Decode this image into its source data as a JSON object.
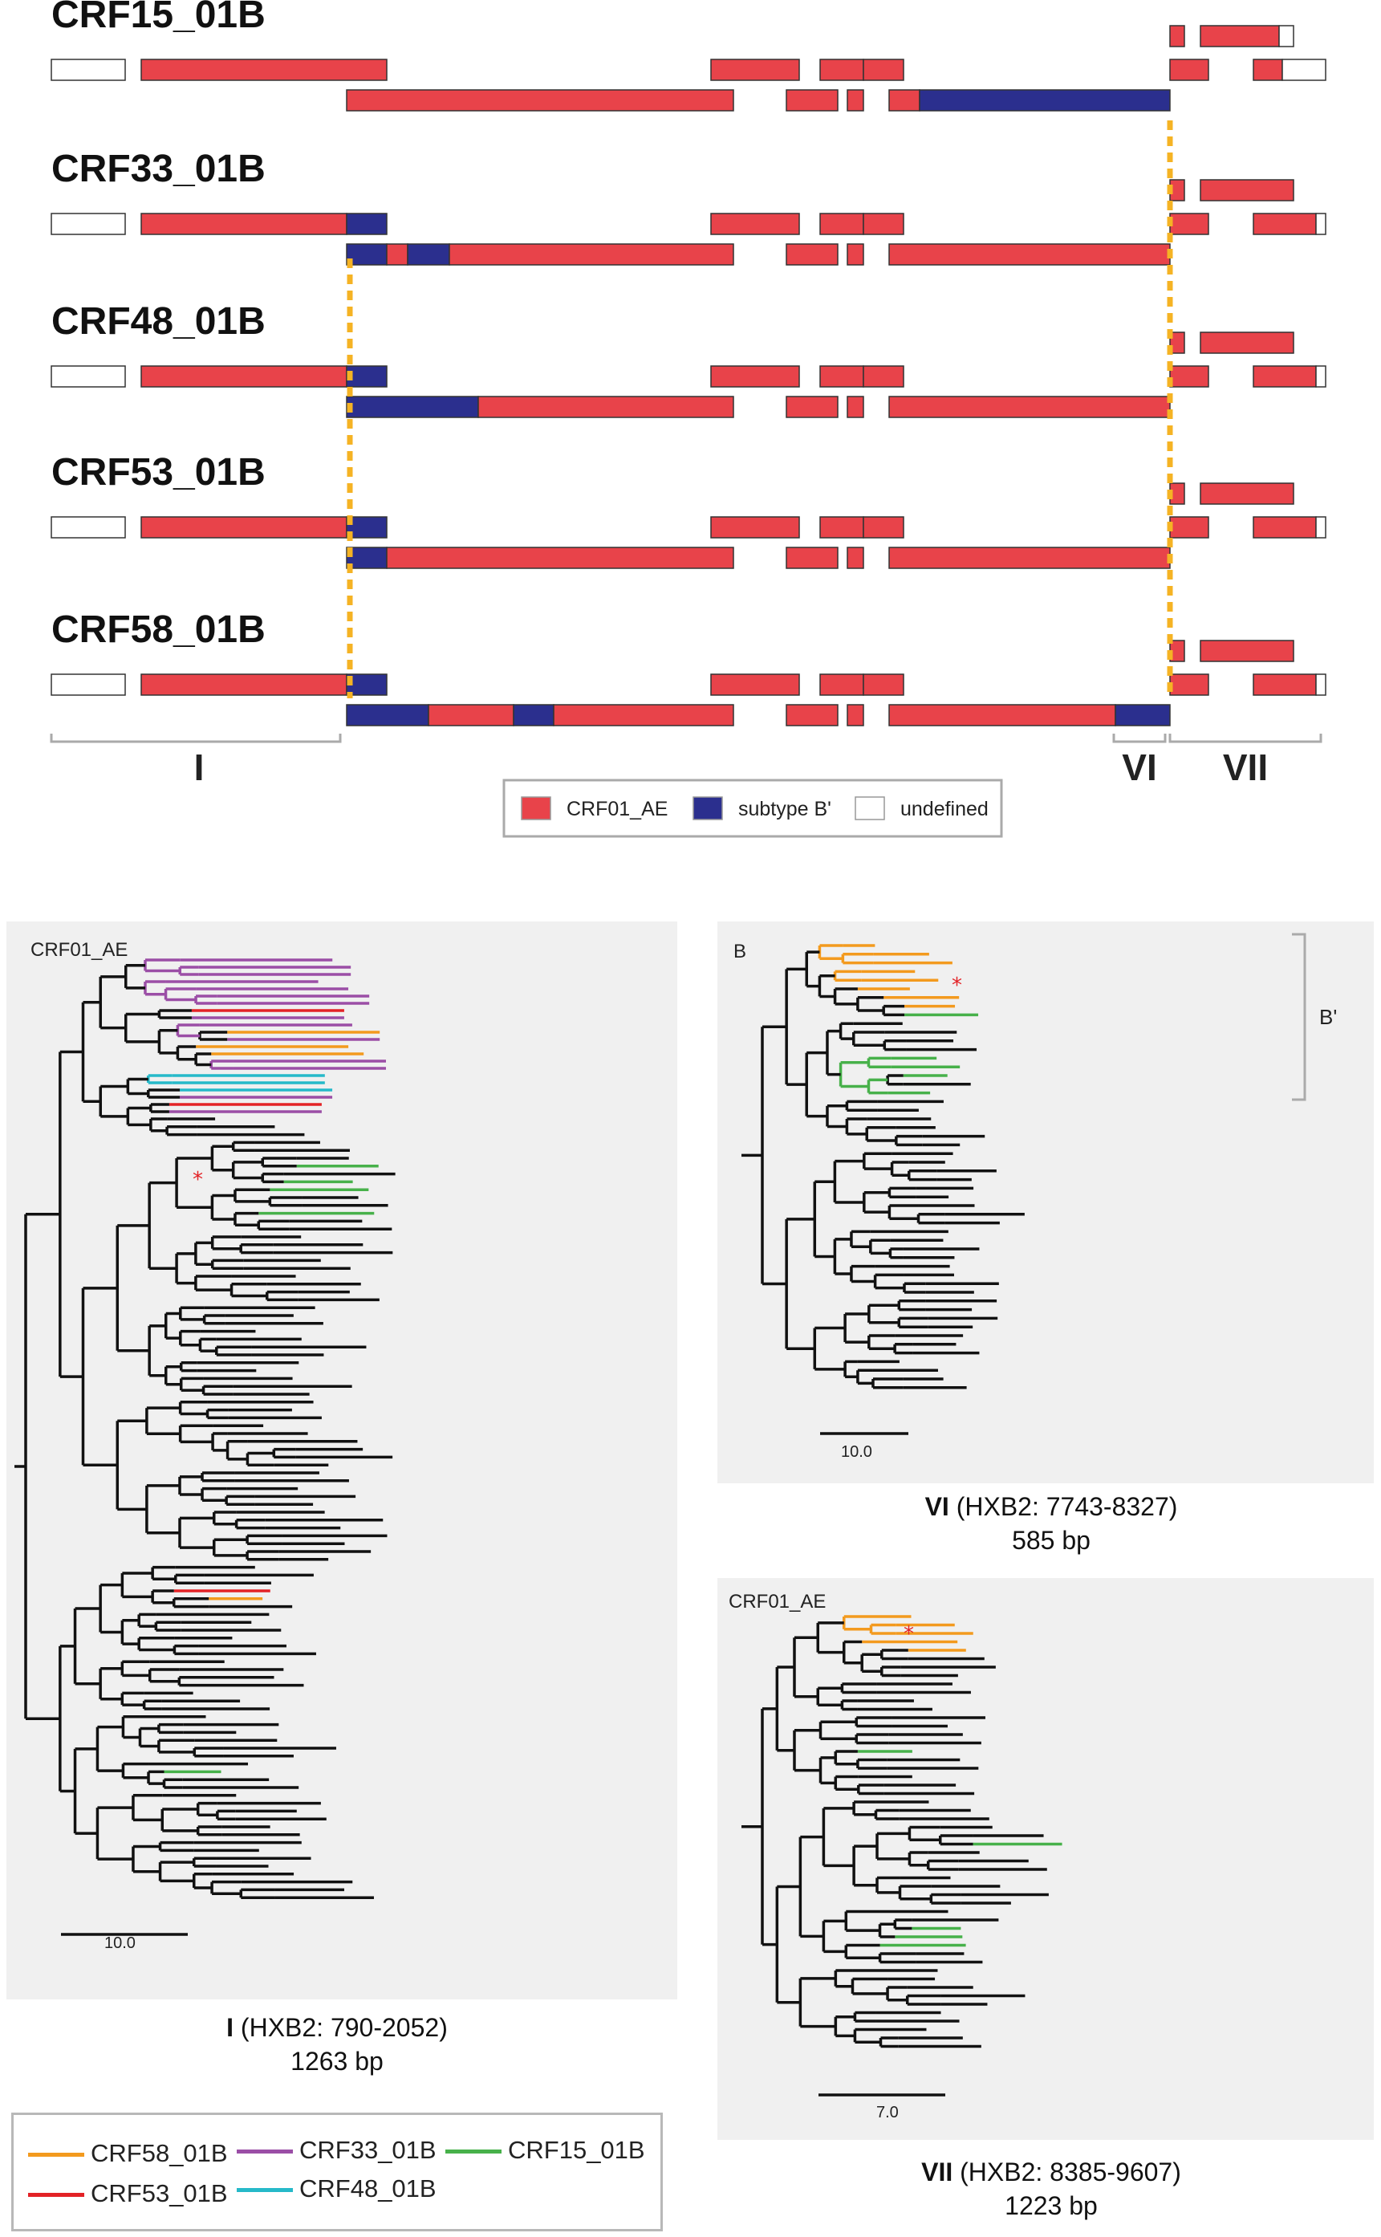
{
  "legend": {
    "items": [
      {
        "label": "CRF01_AE",
        "color": "#e8434a"
      },
      {
        "label": "subtype B'",
        "color": "#2b2f8e"
      },
      {
        "label": "undefined",
        "color": "#ffffff"
      }
    ]
  },
  "genome_maps": [
    {
      "name": "CRF15_01B"
    },
    {
      "name": "CRF33_01B"
    },
    {
      "name": "CRF48_01B"
    },
    {
      "name": "CRF53_01B"
    },
    {
      "name": "CRF58_01B"
    }
  ],
  "regions": {
    "I": "I",
    "VI": "VI",
    "VII": "VII"
  },
  "trees": {
    "I": {
      "title": "CRF01_AE",
      "scale": "10.0",
      "caption_region": "I",
      "caption_range": "(HXB2: 790-2052)",
      "caption_length": "1263 bp"
    },
    "VI": {
      "title": "B",
      "scale": "10.0",
      "clade_label": "B'",
      "caption_region": "VI",
      "caption_range": "(HXB2: 7743-8327)",
      "caption_length": "585 bp"
    },
    "VII": {
      "title": "CRF01_AE",
      "scale": "7.0",
      "caption_region": "VII",
      "caption_range": "(HXB2: 8385-9607)",
      "caption_length": "1223 bp"
    }
  },
  "tree_legend": [
    {
      "label": "CRF58_01B",
      "color": "#f39a1e"
    },
    {
      "label": "CRF53_01B",
      "color": "#e32226"
    },
    {
      "label": "CRF33_01B",
      "color": "#9b4ea6"
    },
    {
      "label": "CRF48_01B",
      "color": "#26b9c9"
    },
    {
      "label": "CRF15_01B",
      "color": "#47b14a"
    }
  ],
  "colors": {
    "red": "#e8434a",
    "blue": "#2b2f8e",
    "orange_breakpoint": "#f5b324",
    "panel_bg": "#f0f0f0",
    "bracket": "#aaaaaa"
  }
}
